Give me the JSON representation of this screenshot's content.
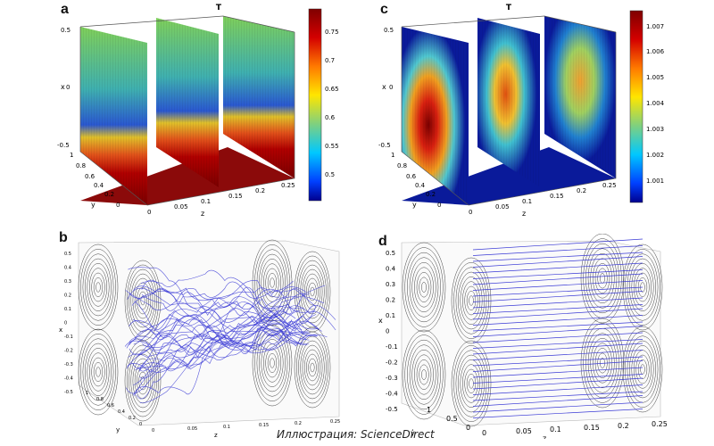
{
  "panels": {
    "a": {
      "letter": "a",
      "title": "T",
      "axis_x": "x",
      "axis_y": "y",
      "axis_z": "z",
      "x_ticks": [
        "0.5",
        "0",
        "-0.5"
      ],
      "y_ticks": [
        "1",
        "0.8",
        "0.6",
        "0.4",
        "0.2",
        "0"
      ],
      "z_ticks": [
        "0",
        "0.05",
        "0.1",
        "0.15",
        "0.2",
        "0.25"
      ],
      "colorbar_ticks": [
        "0.75",
        "0.7",
        "0.65",
        "0.6",
        "0.55",
        "0.5"
      ]
    },
    "c": {
      "letter": "c",
      "title": "T",
      "axis_x": "x",
      "axis_y": "y",
      "axis_z": "z",
      "x_ticks": [
        "0.5",
        "0",
        "-0.5"
      ],
      "y_ticks": [
        "1",
        "0.8",
        "0.6",
        "0.4",
        "0.2",
        "0"
      ],
      "z_ticks": [
        "0",
        "0.05",
        "0.1",
        "0.15",
        "0.2",
        "0.25"
      ],
      "colorbar_ticks": [
        "1.007",
        "1.006",
        "1.005",
        "1.004",
        "1.003",
        "1.002",
        "1.001"
      ]
    },
    "b": {
      "letter": "b",
      "axis_x": "x",
      "axis_y": "y",
      "axis_z": "z",
      "x_ticks": [
        "0.5",
        "0.4",
        "0.3",
        "0.2",
        "0.1",
        "0",
        "-0.1",
        "-0.2",
        "-0.3",
        "-0.4",
        "-0.5"
      ],
      "y_ticks": [
        "1",
        "0.8",
        "0.6",
        "0.4",
        "0.2",
        "0"
      ],
      "z_ticks": [
        "0",
        "0.05",
        "0.1",
        "0.15",
        "0.2",
        "0.25"
      ]
    },
    "d": {
      "letter": "d",
      "axis_x": "x",
      "axis_y": "y",
      "axis_z": "z",
      "x_ticks": [
        "0.5",
        "0.4",
        "0.3",
        "0.2",
        "0.1",
        "0",
        "-0.1",
        "-0.2",
        "-0.3",
        "-0.4",
        "-0.5"
      ],
      "y_ticks": [
        "1",
        "0.5",
        "0"
      ],
      "z_ticks": [
        "0",
        "0.05",
        "0.1",
        "0.15",
        "0.2",
        "0.25"
      ]
    }
  },
  "caption": "Иллюстрация: ScienceDirect",
  "colors": {
    "hot": "#8b0000",
    "cold": "#00008b",
    "streamline_blue": "#3a3ad6",
    "streamline_black": "#444444"
  }
}
